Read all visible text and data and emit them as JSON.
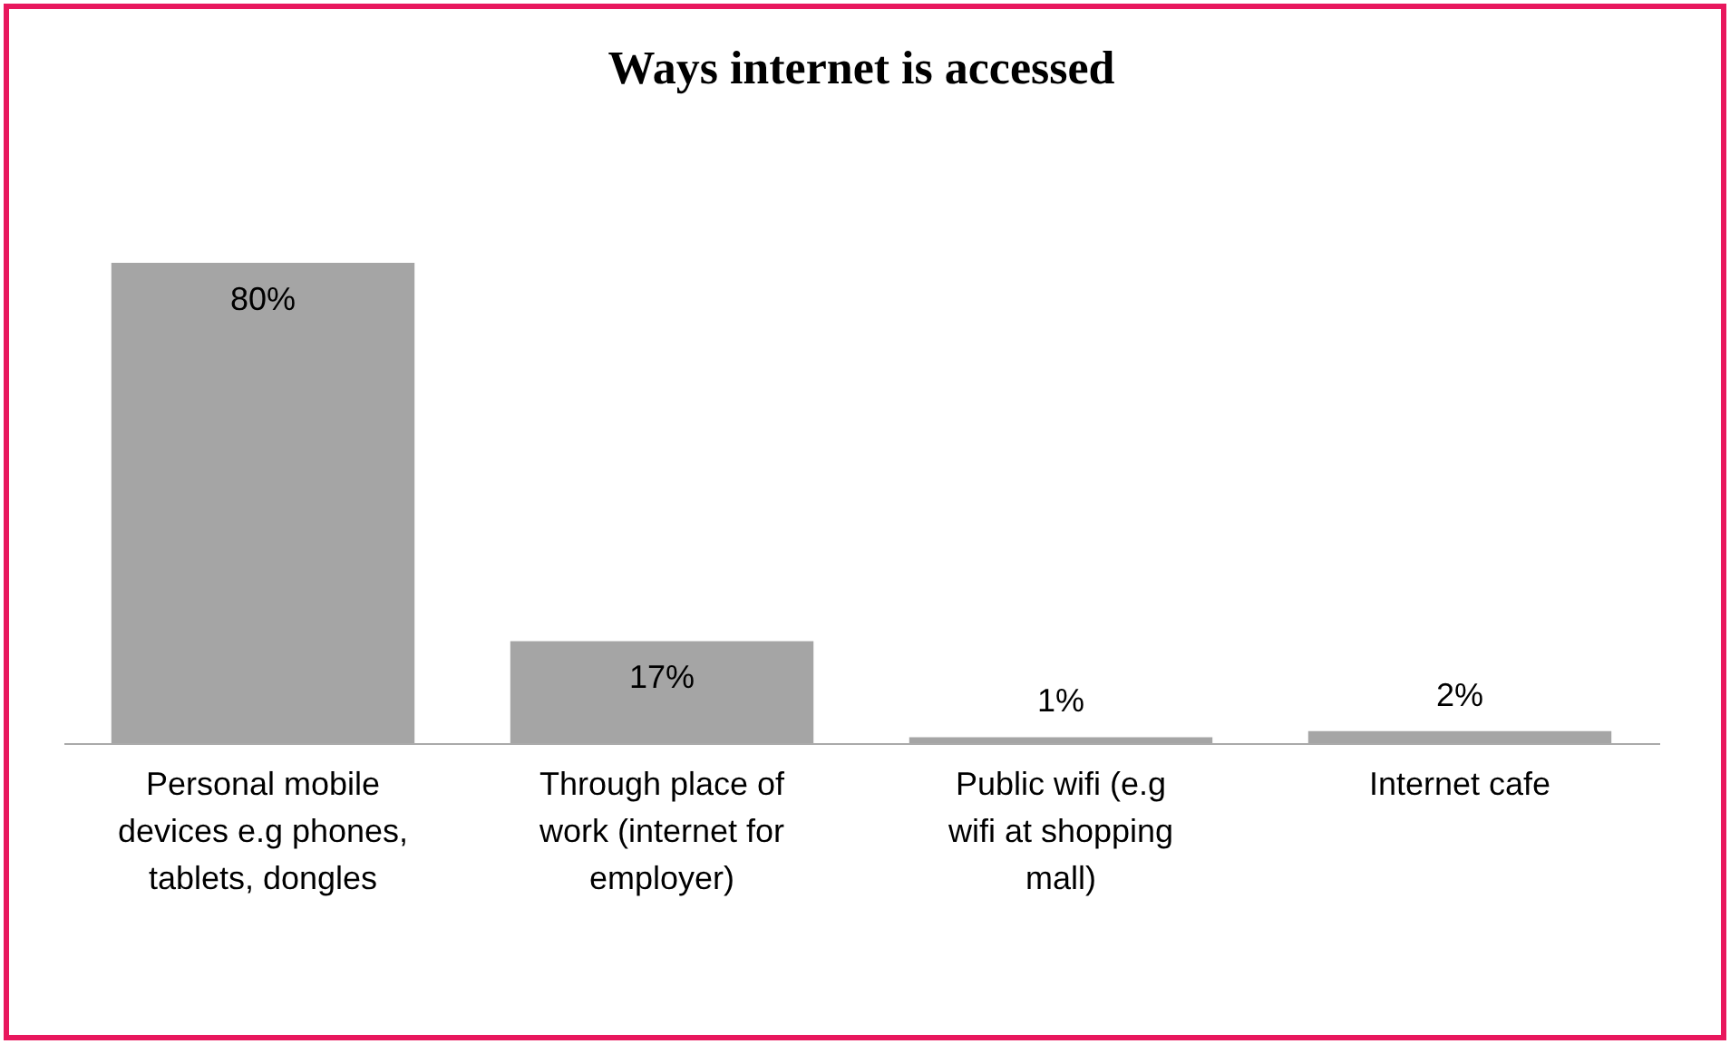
{
  "chart_data": {
    "type": "bar",
    "title": "Ways  internet is accessed",
    "categories": [
      "Personal mobile devices e.g phones, tablets, dongles",
      "Through place of work (internet for employer)",
      "Public wifi (e.g wifi at shopping mall)",
      "Internet cafe"
    ],
    "values": [
      80,
      17,
      1,
      2
    ],
    "value_labels": [
      "80%",
      "17%",
      "1%",
      "2%"
    ],
    "color": "#a5a5a5"
  }
}
